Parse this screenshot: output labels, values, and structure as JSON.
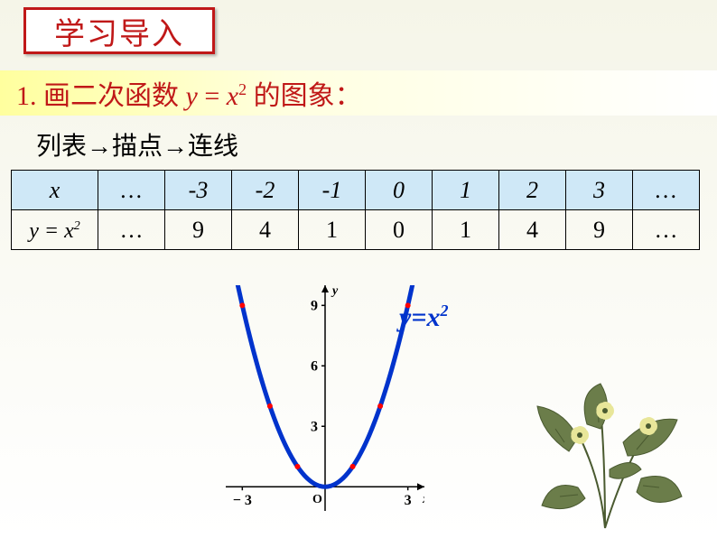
{
  "title": "学习导入",
  "task": {
    "prefix": "1. 画二次函数 ",
    "func_y": "y",
    "eq": " = ",
    "func_x": "x",
    "exp": "2",
    "suffix": "  的图象："
  },
  "steps": "列表→描点→连线",
  "table": {
    "row_headers": {
      "x": "x",
      "y_prefix": "y = x",
      "y_exp": "2"
    },
    "cols": [
      "…",
      "-3",
      "-2",
      "-1",
      "0",
      "1",
      "2",
      "3",
      "…"
    ],
    "vals": [
      "…",
      "9",
      "4",
      "1",
      "0",
      "1",
      "4",
      "9",
      "…"
    ]
  },
  "chart": {
    "type": "line",
    "xlim": [
      -3.6,
      3.6
    ],
    "ylim": [
      -1.2,
      10
    ],
    "x_ticks": [
      -3,
      3
    ],
    "x_tick_labels": [
      "− 3",
      "3"
    ],
    "y_ticks": [
      3,
      6,
      9
    ],
    "axis_labels": {
      "x": "x",
      "y": "y",
      "origin": "O"
    },
    "curve_color": "#0033cc",
    "curve_width": 5,
    "point_color": "#ff0000",
    "axis_color": "#000000",
    "tick_fontsize": 16,
    "label_fontsize": 14,
    "points": [
      {
        "x": -3,
        "y": 9
      },
      {
        "x": -2,
        "y": 4
      },
      {
        "x": -1,
        "y": 1
      },
      {
        "x": 1,
        "y": 1
      },
      {
        "x": 2,
        "y": 4
      },
      {
        "x": 3,
        "y": 9
      }
    ]
  },
  "equation_label": {
    "y": "y",
    "eq": "=",
    "x": "x",
    "exp": "2"
  },
  "plant": {
    "leaf_fill": "#6b7d4a",
    "leaf_dark": "#4a5a30",
    "flower_fill": "#e8e699",
    "stem": "#4a5a30"
  }
}
